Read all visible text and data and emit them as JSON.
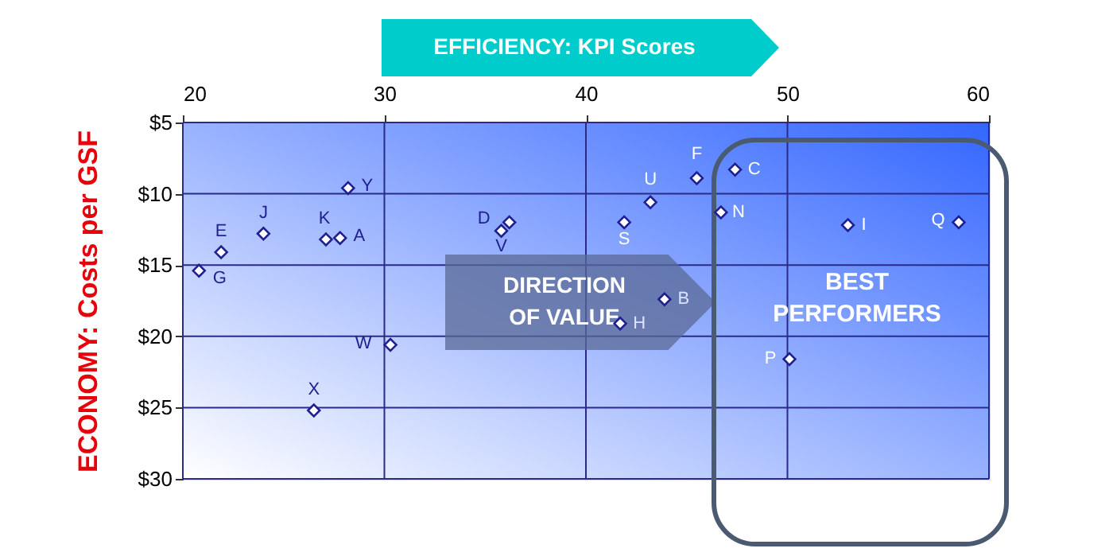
{
  "chart_data": {
    "type": "scatter",
    "xlabel": "EFFICIENCY: KPI Scores",
    "ylabel": "ECONOMY: Costs per GSF",
    "x": [
      20.8,
      21.9,
      24.0,
      27.1,
      27.8,
      28.2,
      30.3,
      26.5,
      36.2,
      35.8,
      41.9,
      43.2,
      45.5,
      47.4,
      46.7,
      43.9,
      41.7,
      53.0,
      58.5,
      50.1
    ],
    "values": [
      15.4,
      14.1,
      12.8,
      13.2,
      13.1,
      9.6,
      20.6,
      25.2,
      12.0,
      12.6,
      12.0,
      10.6,
      8.9,
      8.3,
      11.3,
      17.4,
      19.1,
      12.2,
      12.0,
      21.6
    ],
    "value_labels": [
      "G",
      "E",
      "J",
      "K",
      "A",
      "Y",
      "W",
      "X",
      "D",
      "V",
      "S",
      "U",
      "F",
      "C",
      "N",
      "B",
      "H",
      "I",
      "Q",
      "P"
    ],
    "color": "#1f1f8f",
    "marker": "diamond",
    "xlim": [
      20,
      60
    ],
    "xticks": [
      20,
      30,
      40,
      50,
      60
    ],
    "ylim": [
      30,
      5
    ],
    "yticks": [
      {
        "value": 5,
        "label": "$5"
      },
      {
        "value": 10,
        "label": "$10"
      },
      {
        "value": 15,
        "label": "$15"
      },
      {
        "value": 20,
        "label": "$20"
      },
      {
        "value": 25,
        "label": "$25"
      },
      {
        "value": 30,
        "label": "$30"
      }
    ],
    "grid": true,
    "annotations": [
      "DIRECTION OF VALUE",
      "BEST PERFORMERS"
    ]
  }
}
